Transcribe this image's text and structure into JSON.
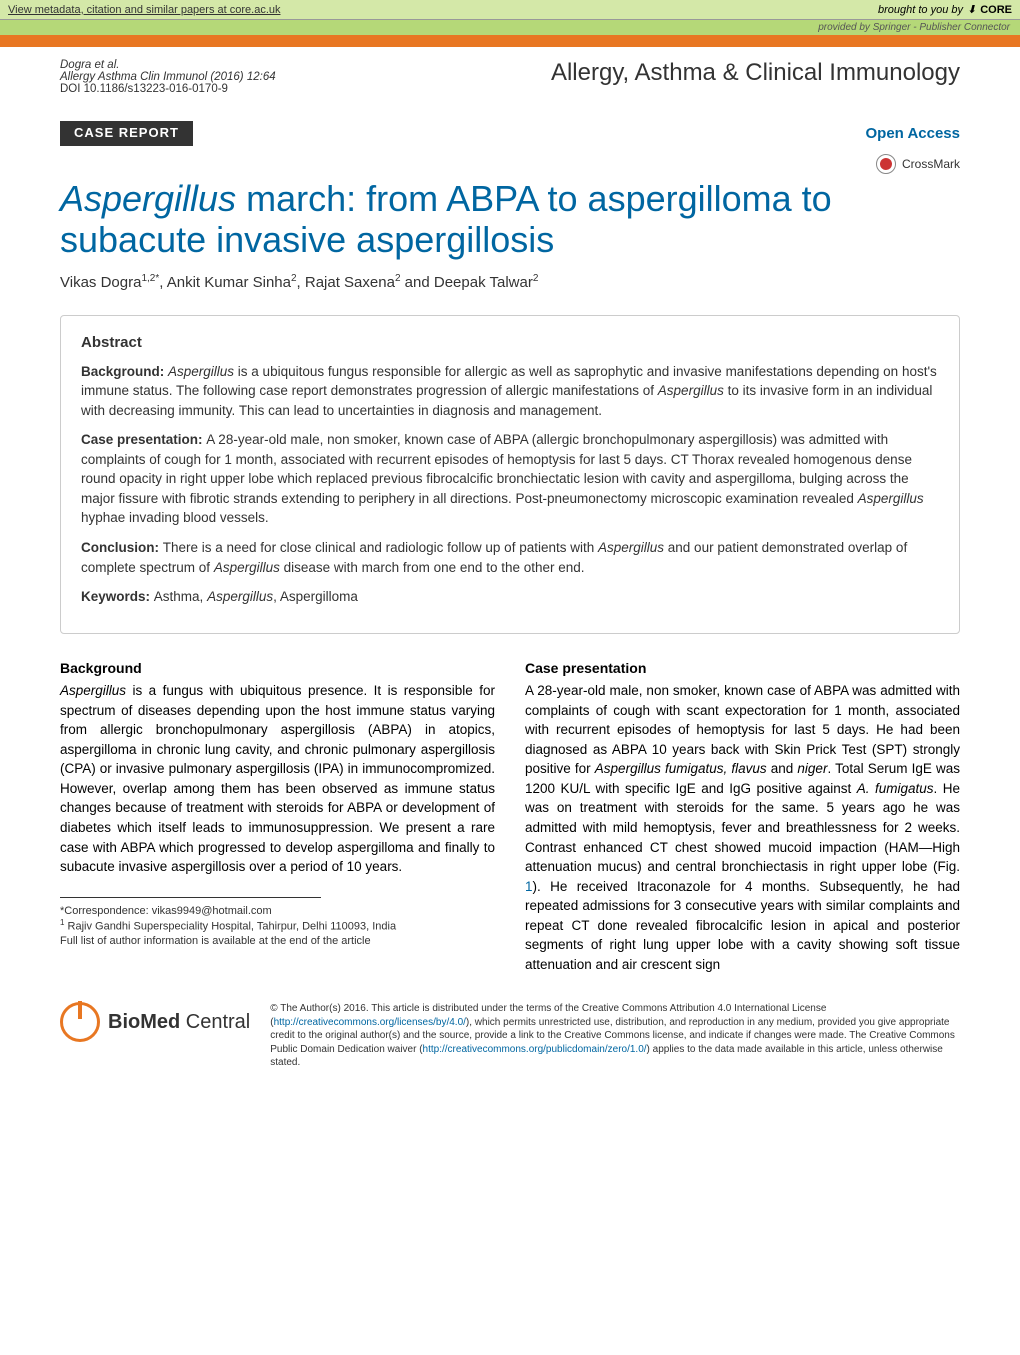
{
  "core_banner": {
    "left_text": "View metadata, citation and similar papers at core.ac.uk",
    "right_prefix": "brought to you by",
    "logo": "CORE",
    "provided_by": "provided by Springer - Publisher Connector"
  },
  "header": {
    "authors_short": "Dogra et al.",
    "journal_citation": "Allergy Asthma Clin Immunol  (2016) 12:64",
    "doi": "DOI 10.1186/s13223-016-0170-9",
    "journal_title": "Allergy, Asthma & Clinical Immunology"
  },
  "banners": {
    "case_report": "CASE REPORT",
    "open_access": "Open Access",
    "crossmark": "CrossMark"
  },
  "title": {
    "italic": "Aspergillus",
    "rest": " march: from ABPA to aspergilloma to subacute invasive aspergillosis"
  },
  "authors": {
    "a1_name": "Vikas Dogra",
    "a1_aff": "1,2*",
    "a2_name": ", Ankit Kumar Sinha",
    "a2_aff": "2",
    "a3_name": ", Rajat Saxena",
    "a3_aff": "2",
    "a4_pre": " and ",
    "a4_name": "Deepak Talwar",
    "a4_aff": "2"
  },
  "abstract": {
    "heading": "Abstract",
    "bg_label": "Background: ",
    "bg_i1": "Aspergillus",
    "bg_t1": " is a ubiquitous fungus responsible for allergic as well as saprophytic and invasive manifestations depending on host's immune status. The following case report demonstrates progression of allergic manifestations of ",
    "bg_i2": "Aspergillus",
    "bg_t2": " to its invasive form in an individual with decreasing immunity. This can lead to uncertainties in diagnosis and management.",
    "case_label": "Case presentation: ",
    "case_t1": "A 28-year-old male, non smoker, known case of ABPA (allergic bronchopulmonary aspergillosis) was admitted with complaints of cough for 1 month, associated with recurrent episodes of hemoptysis for last 5 days. CT Thorax revealed homogenous dense round opacity in right upper lobe which replaced previous fibrocalcific bronchiectatic lesion with cavity and aspergilloma, bulging across the major fissure with fibrotic strands extending to periphery in all directions. Post-pneumonectomy microscopic examination revealed ",
    "case_i1": "Aspergillus",
    "case_t2": " hyphae invading blood vessels.",
    "conc_label": "Conclusion: ",
    "conc_t1": "There is a need for close clinical and radiologic follow up of patients with ",
    "conc_i1": "Aspergillus",
    "conc_t2": " and our patient demonstrated overlap of complete spectrum of ",
    "conc_i2": "Aspergillus",
    "conc_t3": " disease with march from one end to the other end.",
    "kw_label": "Keywords: ",
    "kw_t1": "Asthma, ",
    "kw_i1": "Aspergillus",
    "kw_t2": ", Aspergilloma"
  },
  "background": {
    "heading": "Background",
    "i1": "Aspergillus",
    "t1": " is a fungus with ubiquitous presence. It is responsible for spectrum of diseases depending upon the host immune status varying from allergic bronchopulmonary aspergillosis (ABPA) in atopics, aspergilloma in chronic lung cavity, and chronic pulmonary aspergillosis (CPA) or invasive pulmonary aspergillosis (IPA) in immunocompromized. However, overlap among them has been observed as immune status changes because of treatment with steroids for ABPA or development of diabetes which itself leads to immunosuppression. We present a rare case with ABPA which progressed to develop aspergilloma and finally to subacute invasive aspergillosis over a period of 10 years."
  },
  "case": {
    "heading": "Case presentation",
    "t1": "A 28-year-old male, non smoker, known case of ABPA was admitted with complaints of cough with scant expectoration for 1 month, associated with recurrent episodes of hemoptysis for last 5 days. He had been diagnosed as ABPA 10 years back with Skin Prick Test (SPT) strongly positive for ",
    "i1": "Aspergillus fumigatus, flavus",
    "t2": " and ",
    "i2": "niger",
    "t3": ". Total Serum IgE was 1200 KU/L with specific IgE and IgG positive against ",
    "i3": "A. fumigatus",
    "t4": ". He was on treatment with steroids for the same. 5 years ago he was admitted with mild hemoptysis, fever and breathlessness for 2 weeks. Contrast enhanced CT chest showed mucoid impaction (HAM—High attenuation mucus) and central bronchiectasis in right upper lobe (Fig. ",
    "link1": "1",
    "t5": "). He received Itraconazole for 4 months. Subsequently, he had repeated admissions for 3 consecutive years with similar complaints and repeat CT done revealed fibrocalcific lesion in apical and posterior segments of right lung upper lobe with a cavity showing soft tissue attenuation and air crescent sign"
  },
  "footnotes": {
    "corr": "*Correspondence:  vikas9949@hotmail.com",
    "aff1_sup": "1",
    "aff1": " Rajiv Gandhi Superspeciality Hospital, Tahirpur, Delhi 110093, India",
    "full": "Full list of author information is available at the end of the article"
  },
  "bmc": {
    "text_bold": "BioMed",
    "text_rest": " Central"
  },
  "license": {
    "t1": "© The Author(s) 2016. This article is distributed under the terms of the Creative Commons Attribution 4.0 International License (",
    "l1": "http://creativecommons.org/licenses/by/4.0/",
    "t2": "), which permits unrestricted use, distribution, and reproduction in any medium, provided you give appropriate credit to the original author(s) and the source, provide a link to the Creative Commons license, and indicate if changes were made. The Creative Commons Public Domain Dedication waiver (",
    "l2": "http://creativecommons.org/publicdomain/zero/1.0/",
    "t3": ") applies to the data made available in this article, unless otherwise stated."
  },
  "colors": {
    "orange": "#e87722",
    "blue": "#0066a1",
    "core_bg": "#d4e8a8",
    "provided_bg": "#b5d878"
  }
}
